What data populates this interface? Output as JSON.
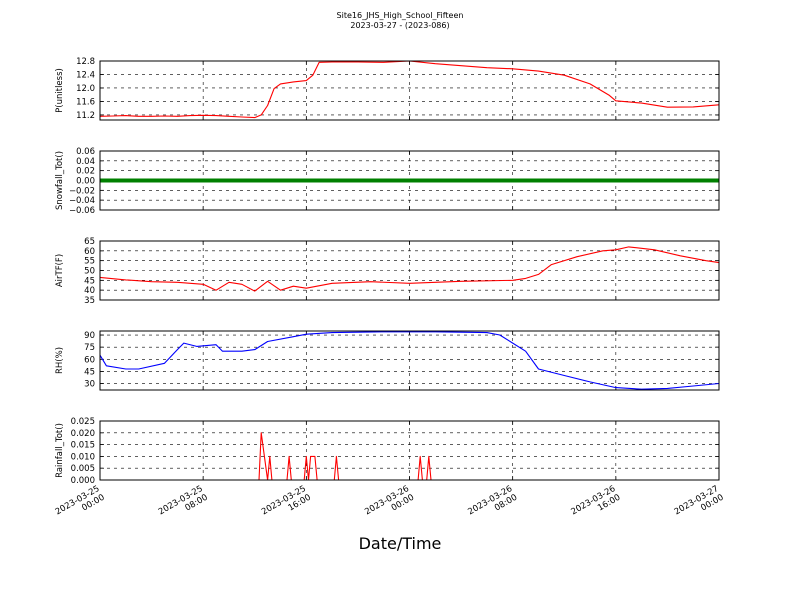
{
  "title_line1": "Site16_JHS_High_School_Fifteen",
  "title_line2": "2023-03-27 - (2023-086)",
  "xlabel": "Date/Time",
  "colors": {
    "red": "#ff0000",
    "green": "#008000",
    "blue": "#0000ff"
  },
  "chart_data": {
    "type": "line",
    "x_ticks": [
      "2023-03-25 00:00",
      "2023-03-25 08:00",
      "2023-03-25 16:00",
      "2023-03-26 00:00",
      "2023-03-26 08:00",
      "2023-03-26 16:00",
      "2023-03-27 00:00"
    ],
    "x_tick_labels": [
      [
        "2023-03-25",
        "00:00"
      ],
      [
        "2023-03-25",
        "08:00"
      ],
      [
        "2023-03-25",
        "16:00"
      ],
      [
        "2023-03-26",
        "00:00"
      ],
      [
        "2023-03-26",
        "08:00"
      ],
      [
        "2023-03-26",
        "16:00"
      ],
      [
        "2023-03-27",
        "00:00"
      ]
    ],
    "x_range": [
      "2023-03-25 00:00",
      "2023-03-27 00:00"
    ],
    "grid": true,
    "panels": [
      {
        "ylabel": "P(unitless)",
        "ylim": [
          11.05,
          12.8
        ],
        "yticks": [
          "11.2",
          "11.6",
          "12.0",
          "12.4",
          "12.8"
        ],
        "series_color": "red",
        "points": [
          [
            "2023-03-25 00:00",
            11.16
          ],
          [
            "2023-03-25 01:00",
            11.17
          ],
          [
            "2023-03-25 02:00",
            11.18
          ],
          [
            "2023-03-25 03:00",
            11.16
          ],
          [
            "2023-03-25 04:00",
            11.16
          ],
          [
            "2023-03-25 05:00",
            11.17
          ],
          [
            "2023-03-25 06:00",
            11.16
          ],
          [
            "2023-03-25 07:00",
            11.18
          ],
          [
            "2023-03-25 08:00",
            11.19
          ],
          [
            "2023-03-25 09:00",
            11.18
          ],
          [
            "2023-03-25 10:00",
            11.16
          ],
          [
            "2023-03-25 11:00",
            11.14
          ],
          [
            "2023-03-25 12:00",
            11.12
          ],
          [
            "2023-03-25 12:30",
            11.2
          ],
          [
            "2023-03-25 13:00",
            11.48
          ],
          [
            "2023-03-25 13:30",
            11.98
          ],
          [
            "2023-03-25 14:00",
            12.12
          ],
          [
            "2023-03-25 15:00",
            12.18
          ],
          [
            "2023-03-25 16:00",
            12.22
          ],
          [
            "2023-03-25 16:30",
            12.38
          ],
          [
            "2023-03-25 17:00",
            12.76
          ],
          [
            "2023-03-25 18:00",
            12.77
          ],
          [
            "2023-03-25 20:00",
            12.77
          ],
          [
            "2023-03-25 22:00",
            12.76
          ],
          [
            "2023-03-26 00:00",
            12.8
          ],
          [
            "2023-03-26 02:00",
            12.72
          ],
          [
            "2023-03-26 04:00",
            12.66
          ],
          [
            "2023-03-26 06:00",
            12.6
          ],
          [
            "2023-03-26 08:00",
            12.57
          ],
          [
            "2023-03-26 10:00",
            12.5
          ],
          [
            "2023-03-26 12:00",
            12.38
          ],
          [
            "2023-03-26 14:00",
            12.12
          ],
          [
            "2023-03-26 15:30",
            11.78
          ],
          [
            "2023-03-26 16:00",
            11.62
          ],
          [
            "2023-03-26 18:00",
            11.55
          ],
          [
            "2023-03-26 20:00",
            11.43
          ],
          [
            "2023-03-26 22:00",
            11.44
          ],
          [
            "2023-03-27 00:00",
            11.5
          ]
        ]
      },
      {
        "ylabel": "Snowfall_Tot()",
        "ylim": [
          -0.06,
          0.06
        ],
        "yticks": [
          "−0.06",
          "−0.04",
          "−0.02",
          "0.00",
          "0.02",
          "0.04",
          "0.06"
        ],
        "series_color": "green",
        "points": [
          [
            "2023-03-25 00:00",
            0.0
          ],
          [
            "2023-03-27 00:00",
            0.0
          ]
        ]
      },
      {
        "ylabel": "AirTF(F)",
        "ylim": [
          35,
          65
        ],
        "yticks": [
          "35",
          "40",
          "45",
          "50",
          "55",
          "60",
          "65"
        ],
        "series_color": "red",
        "points": [
          [
            "2023-03-25 00:00",
            46.5
          ],
          [
            "2023-03-25 02:00",
            45.2
          ],
          [
            "2023-03-25 04:00",
            44.3
          ],
          [
            "2023-03-25 06:00",
            44.0
          ],
          [
            "2023-03-25 08:00",
            43.0
          ],
          [
            "2023-03-25 09:00",
            40.0
          ],
          [
            "2023-03-25 10:00",
            44.0
          ],
          [
            "2023-03-25 11:00",
            43.0
          ],
          [
            "2023-03-25 12:00",
            39.5
          ],
          [
            "2023-03-25 13:00",
            44.5
          ],
          [
            "2023-03-25 14:00",
            40.0
          ],
          [
            "2023-03-25 15:00",
            42.0
          ],
          [
            "2023-03-25 16:00",
            41.0
          ],
          [
            "2023-03-25 18:00",
            43.5
          ],
          [
            "2023-03-25 21:00",
            44.3
          ],
          [
            "2023-03-26 00:00",
            43.5
          ],
          [
            "2023-03-26 04:00",
            44.5
          ],
          [
            "2023-03-26 08:00",
            45.0
          ],
          [
            "2023-03-26 09:00",
            46.0
          ],
          [
            "2023-03-26 10:00",
            48.0
          ],
          [
            "2023-03-26 11:00",
            53.0
          ],
          [
            "2023-03-26 13:00",
            57.0
          ],
          [
            "2023-03-26 15:00",
            60.0
          ],
          [
            "2023-03-26 16:00",
            60.5
          ],
          [
            "2023-03-26 17:00",
            62.0
          ],
          [
            "2023-03-26 19:00",
            60.5
          ],
          [
            "2023-03-26 21:00",
            57.5
          ],
          [
            "2023-03-26 23:00",
            55.0
          ],
          [
            "2023-03-27 00:00",
            54.0
          ]
        ]
      },
      {
        "ylabel": "RH(%)",
        "ylim": [
          22,
          95
        ],
        "yticks": [
          "30",
          "45",
          "60",
          "75",
          "90"
        ],
        "series_color": "blue",
        "points": [
          [
            "2023-03-25 00:00",
            65
          ],
          [
            "2023-03-25 00:30",
            52
          ],
          [
            "2023-03-25 02:00",
            48
          ],
          [
            "2023-03-25 03:00",
            48
          ],
          [
            "2023-03-25 05:00",
            55
          ],
          [
            "2023-03-25 06:00",
            72
          ],
          [
            "2023-03-25 06:30",
            80
          ],
          [
            "2023-03-25 07:30",
            76
          ],
          [
            "2023-03-25 09:00",
            78
          ],
          [
            "2023-03-25 09:30",
            70
          ],
          [
            "2023-03-25 11:00",
            70
          ],
          [
            "2023-03-25 12:00",
            72
          ],
          [
            "2023-03-25 13:00",
            82
          ],
          [
            "2023-03-25 15:00",
            88
          ],
          [
            "2023-03-25 16:00",
            91
          ],
          [
            "2023-03-25 18:00",
            93
          ],
          [
            "2023-03-25 22:00",
            94
          ],
          [
            "2023-03-26 02:00",
            94
          ],
          [
            "2023-03-26 06:00",
            93
          ],
          [
            "2023-03-26 07:00",
            90
          ],
          [
            "2023-03-26 08:00",
            80
          ],
          [
            "2023-03-26 09:00",
            70
          ],
          [
            "2023-03-26 10:00",
            48
          ],
          [
            "2023-03-26 12:00",
            40
          ],
          [
            "2023-03-26 14:00",
            32
          ],
          [
            "2023-03-26 16:00",
            25
          ],
          [
            "2023-03-26 18:00",
            23
          ],
          [
            "2023-03-26 20:00",
            24
          ],
          [
            "2023-03-26 22:00",
            27
          ],
          [
            "2023-03-27 00:00",
            30
          ]
        ]
      },
      {
        "ylabel": "Rainfall_Tot()",
        "ylim": [
          0,
          0.025
        ],
        "yticks": [
          "0.000",
          "0.005",
          "0.010",
          "0.015",
          "0.020",
          "0.025"
        ],
        "series_color": "red",
        "points": [
          [
            "2023-03-25 00:00",
            0.0
          ],
          [
            "2023-03-25 12:20",
            0.0
          ],
          [
            "2023-03-25 12:30",
            0.02
          ],
          [
            "2023-03-25 13:00",
            0.0
          ],
          [
            "2023-03-25 13:10",
            0.01
          ],
          [
            "2023-03-25 13:20",
            0.0
          ],
          [
            "2023-03-25 14:30",
            0.0
          ],
          [
            "2023-03-25 14:40",
            0.01
          ],
          [
            "2023-03-25 14:50",
            0.0
          ],
          [
            "2023-03-25 15:50",
            0.0
          ],
          [
            "2023-03-25 16:00",
            0.01
          ],
          [
            "2023-03-25 16:10",
            0.0
          ],
          [
            "2023-03-25 16:20",
            0.01
          ],
          [
            "2023-03-25 16:40",
            0.01
          ],
          [
            "2023-03-25 16:50",
            0.0
          ],
          [
            "2023-03-25 18:10",
            0.0
          ],
          [
            "2023-03-25 18:20",
            0.01
          ],
          [
            "2023-03-25 18:30",
            0.0
          ],
          [
            "2023-03-26 00:40",
            0.0
          ],
          [
            "2023-03-26 00:50",
            0.01
          ],
          [
            "2023-03-26 01:00",
            0.0
          ],
          [
            "2023-03-26 01:20",
            0.0
          ],
          [
            "2023-03-26 01:30",
            0.01
          ],
          [
            "2023-03-26 01:40",
            0.0
          ],
          [
            "2023-03-27 00:00",
            0.0
          ]
        ]
      }
    ]
  }
}
